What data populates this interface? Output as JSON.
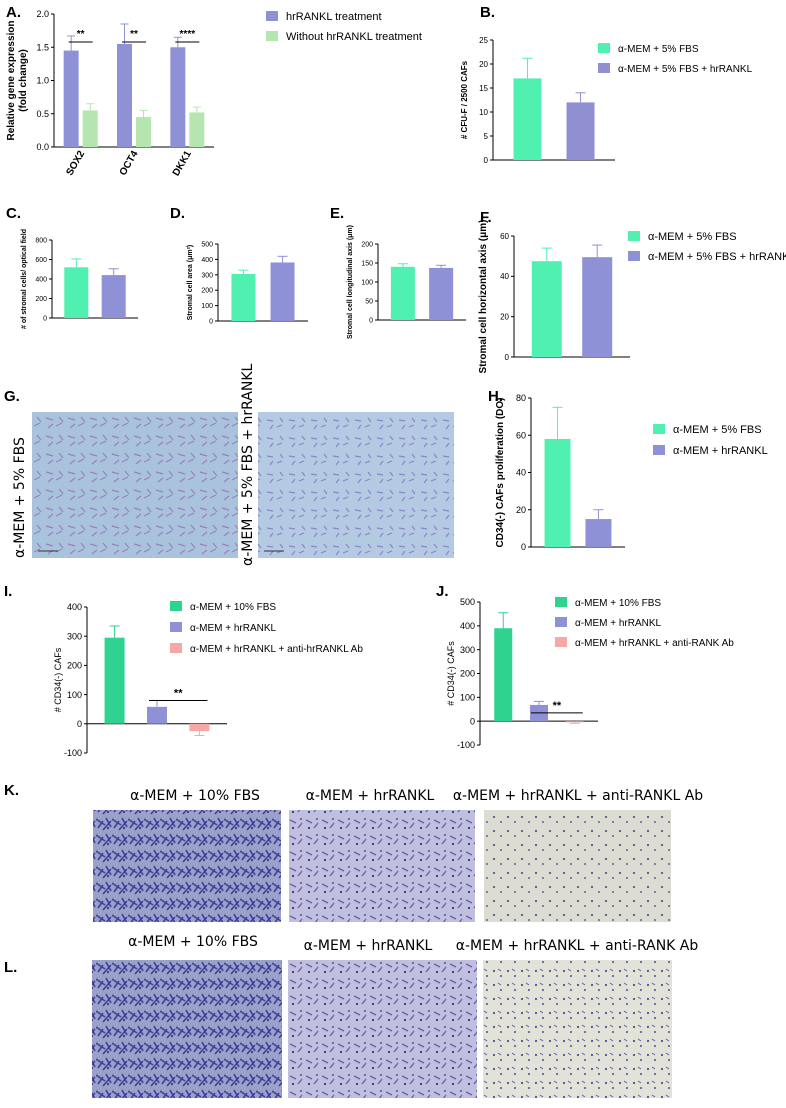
{
  "colors": {
    "green": "#4ff0b0",
    "green_dark": "#2fd28f",
    "purple": "#8e91d6",
    "lightgreen": "#b5e6b0",
    "pink": "#f8a7a7",
    "purple_dark": "#8f8fd2"
  },
  "panel_labels": [
    "A.",
    "B.",
    "C.",
    "D.",
    "E.",
    "F.",
    "G.",
    "H.",
    "I.",
    "J.",
    "K.",
    "L."
  ],
  "micrographs": {
    "G": {
      "row_labels": [
        "α-MEM + 5% FBS",
        "α-MEM + 5% FBS + hrRANKL"
      ]
    },
    "K": {
      "captions": [
        "α-MEM + 10% FBS",
        "α-MEM + hrRANKL",
        "α-MEM + hrRANKL + anti-RANKL Ab"
      ]
    },
    "L": {
      "captions": [
        "α-MEM + 10% FBS",
        "α-MEM + hrRANKL",
        "α-MEM + hrRANKL + anti-RANK Ab"
      ]
    }
  },
  "chart_data": [
    {
      "id": "A",
      "type": "bar",
      "categories": [
        "SOX2",
        "OCT4",
        "DKK1"
      ],
      "series": [
        {
          "name": "hrRANKL treatment",
          "values": [
            1.45,
            1.55,
            1.5
          ],
          "errors": [
            0.22,
            0.3,
            0.15
          ]
        },
        {
          "name": "Without hrRANKL treatment",
          "values": [
            0.55,
            0.45,
            0.52
          ],
          "errors": [
            0.1,
            0.1,
            0.08
          ]
        }
      ],
      "significance": [
        "**",
        "**",
        "****"
      ],
      "ylabel": "Relative gene expression (fold change)",
      "ylim": [
        0,
        2
      ],
      "yticks": [
        "0.0",
        "0.5",
        "1.0",
        "1.5",
        "2.0"
      ],
      "legend": "top-right"
    },
    {
      "id": "B",
      "type": "bar",
      "categories": [
        "α-MEM + 5% FBS",
        "α-MEM + 5% FBS + hrRANKL"
      ],
      "values": [
        17,
        12
      ],
      "errors": [
        4.2,
        2
      ],
      "ylabel": "# CFU-F / 2500 CAFs",
      "ylim": [
        0,
        25
      ],
      "yticks": [
        "0",
        "5",
        "10",
        "15",
        "20",
        "25"
      ],
      "legend": "right"
    },
    {
      "id": "C",
      "type": "bar",
      "categories": [
        "α-MEM + 5% FBS",
        "α-MEM + 5% FBS + hrRANKL"
      ],
      "values": [
        520,
        440
      ],
      "errors": [
        85,
        65
      ],
      "ylabel": "# of stromal cells/ optical field",
      "ylim": [
        0,
        800
      ],
      "yticks": [
        "0",
        "200",
        "400",
        "600",
        "800"
      ]
    },
    {
      "id": "D",
      "type": "bar",
      "categories": [
        "α-MEM + 5% FBS",
        "α-MEM + 5% FBS + hrRANKL"
      ],
      "values": [
        305,
        380
      ],
      "errors": [
        25,
        40
      ],
      "ylabel": "Stromal cell area (μm²)",
      "ylim": [
        0,
        500
      ],
      "yticks": [
        "0",
        "100",
        "200",
        "300",
        "400",
        "500"
      ]
    },
    {
      "id": "E",
      "type": "bar",
      "categories": [
        "α-MEM + 5% FBS",
        "α-MEM + 5% FBS + hrRANKL"
      ],
      "values": [
        140,
        137
      ],
      "errors": [
        8,
        7
      ],
      "ylabel": "Stromal cell longitudinal axis (μm)",
      "ylim": [
        0,
        200
      ],
      "yticks": [
        "0",
        "50",
        "100",
        "150",
        "200"
      ]
    },
    {
      "id": "F",
      "type": "bar",
      "categories": [
        "α-MEM + 5% FBS",
        "α-MEM + 5% FBS + hrRANKL"
      ],
      "values": [
        47.5,
        49.5
      ],
      "errors": [
        6.5,
        6
      ],
      "ylabel": "Stromal cell horizontal axis (μm)",
      "ylim": [
        0,
        60
      ],
      "yticks": [
        "0",
        "20",
        "40",
        "60"
      ],
      "legend": "right"
    },
    {
      "id": "H",
      "type": "bar",
      "categories": [
        "α-MEM +  5% FBS",
        "α-MEM + hrRANKL"
      ],
      "values": [
        58,
        15
      ],
      "errors": [
        17,
        5
      ],
      "ylabel": "CD34(-) CAFs proliferation (DO)",
      "ylim": [
        0,
        80
      ],
      "yticks": [
        "0",
        "20",
        "40",
        "60",
        "80"
      ],
      "legend": "right"
    },
    {
      "id": "I",
      "type": "bar",
      "categories": [
        "α-MEM + 10% FBS",
        "α-MEM + hrRANKL",
        "α-MEM + hrRANKL +  anti-hrRANKL Ab"
      ],
      "values": [
        295,
        58,
        -25
      ],
      "errors": [
        40,
        22,
        15
      ],
      "significance": "**",
      "ylabel": "# CD34(-) CAFs",
      "ylim": [
        -100,
        400
      ],
      "yticks": [
        "-100",
        "0",
        "100",
        "200",
        "300",
        "400"
      ],
      "legend": "right"
    },
    {
      "id": "J",
      "type": "bar",
      "categories": [
        "α-MEM + 10% FBS",
        "α-MEM + hrRANKL",
        "α-MEM + hrRANKL + anti-RANK Ab"
      ],
      "values": [
        390,
        68,
        -5
      ],
      "errors": [
        65,
        15,
        4
      ],
      "significance": "**",
      "ylabel": "# CD34(-) CAFs",
      "ylim": [
        -100,
        500
      ],
      "yticks": [
        "-100",
        "0",
        "100",
        "200",
        "300",
        "400",
        "500"
      ],
      "legend": "right"
    }
  ]
}
